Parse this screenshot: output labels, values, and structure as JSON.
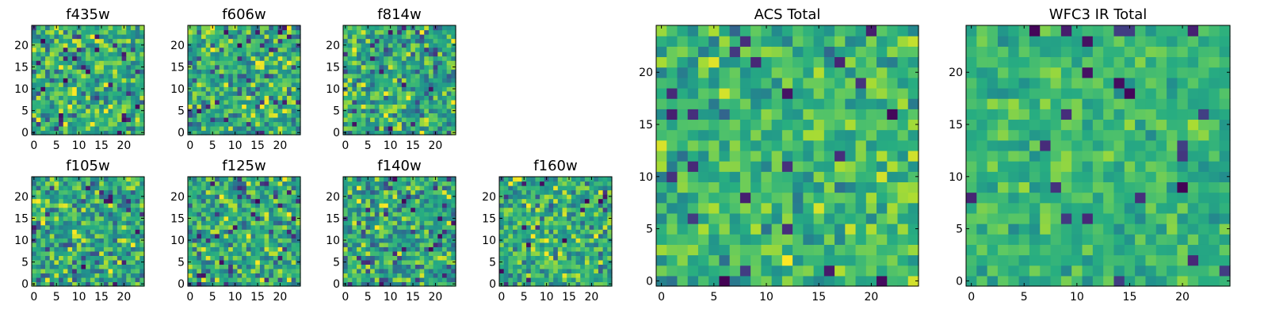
{
  "chart_data": [
    {
      "type": "heatmap",
      "title": "f435w",
      "x_ticks": [
        "0",
        "5",
        "10",
        "15",
        "20"
      ],
      "y_ticks": [
        "0",
        "5",
        "10",
        "15",
        "20"
      ],
      "xlim": [
        0,
        25
      ],
      "ylim": [
        0,
        25
      ],
      "grid_size": 25,
      "colormap": "viridis",
      "value_range": [
        0,
        1
      ],
      "mean": 0.62,
      "noise": 0.34,
      "seed": 11
    },
    {
      "type": "heatmap",
      "title": "f606w",
      "x_ticks": [
        "0",
        "5",
        "10",
        "15",
        "20"
      ],
      "y_ticks": [
        "0",
        "5",
        "10",
        "15",
        "20"
      ],
      "xlim": [
        0,
        25
      ],
      "ylim": [
        0,
        25
      ],
      "grid_size": 25,
      "colormap": "viridis",
      "value_range": [
        0,
        1
      ],
      "mean": 0.62,
      "noise": 0.36,
      "seed": 23
    },
    {
      "type": "heatmap",
      "title": "f814w",
      "x_ticks": [
        "0",
        "5",
        "10",
        "15",
        "20"
      ],
      "y_ticks": [
        "0",
        "5",
        "10",
        "15",
        "20"
      ],
      "xlim": [
        0,
        25
      ],
      "ylim": [
        0,
        25
      ],
      "grid_size": 25,
      "colormap": "viridis",
      "value_range": [
        0,
        1
      ],
      "mean": 0.62,
      "noise": 0.36,
      "seed": 37
    },
    {
      "type": "heatmap",
      "title": "f105w",
      "x_ticks": [
        "0",
        "5",
        "10",
        "15",
        "20"
      ],
      "y_ticks": [
        "0",
        "5",
        "10",
        "15",
        "20"
      ],
      "xlim": [
        0,
        25
      ],
      "ylim": [
        0,
        25
      ],
      "grid_size": 25,
      "colormap": "viridis",
      "value_range": [
        0,
        1
      ],
      "mean": 0.6,
      "noise": 0.34,
      "seed": 41
    },
    {
      "type": "heatmap",
      "title": "f125w",
      "x_ticks": [
        "0",
        "5",
        "10",
        "15",
        "20"
      ],
      "y_ticks": [
        "0",
        "5",
        "10",
        "15",
        "20"
      ],
      "xlim": [
        0,
        25
      ],
      "ylim": [
        0,
        25
      ],
      "grid_size": 25,
      "colormap": "viridis",
      "value_range": [
        0,
        1
      ],
      "mean": 0.62,
      "noise": 0.34,
      "seed": 53
    },
    {
      "type": "heatmap",
      "title": "f140w",
      "x_ticks": [
        "0",
        "5",
        "10",
        "15",
        "20"
      ],
      "y_ticks": [
        "0",
        "5",
        "10",
        "15",
        "20"
      ],
      "xlim": [
        0,
        25
      ],
      "ylim": [
        0,
        25
      ],
      "grid_size": 25,
      "colormap": "viridis",
      "value_range": [
        0,
        1
      ],
      "mean": 0.6,
      "noise": 0.34,
      "seed": 67
    },
    {
      "type": "heatmap",
      "title": "f160w",
      "x_ticks": [
        "0",
        "5",
        "10",
        "15",
        "20"
      ],
      "y_ticks": [
        "0",
        "5",
        "10",
        "15",
        "20"
      ],
      "xlim": [
        0,
        25
      ],
      "ylim": [
        0,
        25
      ],
      "grid_size": 25,
      "colormap": "viridis",
      "value_range": [
        0,
        1
      ],
      "mean": 0.64,
      "noise": 0.3,
      "seed": 79
    },
    {
      "type": "heatmap",
      "title": "ACS Total",
      "x_ticks": [
        "0",
        "5",
        "10",
        "15",
        "20"
      ],
      "y_ticks": [
        "0",
        "5",
        "10",
        "15",
        "20"
      ],
      "xlim": [
        0,
        25
      ],
      "ylim": [
        0,
        25
      ],
      "grid_size": 25,
      "colormap": "viridis",
      "value_range": [
        0,
        1
      ],
      "mean": 0.66,
      "noise": 0.24,
      "seed": 97
    },
    {
      "type": "heatmap",
      "title": "WFC3 IR Total",
      "x_ticks": [
        "0",
        "5",
        "10",
        "15",
        "20"
      ],
      "y_ticks": [
        "0",
        "5",
        "10",
        "15",
        "20"
      ],
      "xlim": [
        0,
        25
      ],
      "ylim": [
        0,
        25
      ],
      "grid_size": 25,
      "colormap": "viridis",
      "value_range": [
        0,
        1
      ],
      "mean": 0.66,
      "noise": 0.16,
      "seed": 131
    }
  ]
}
